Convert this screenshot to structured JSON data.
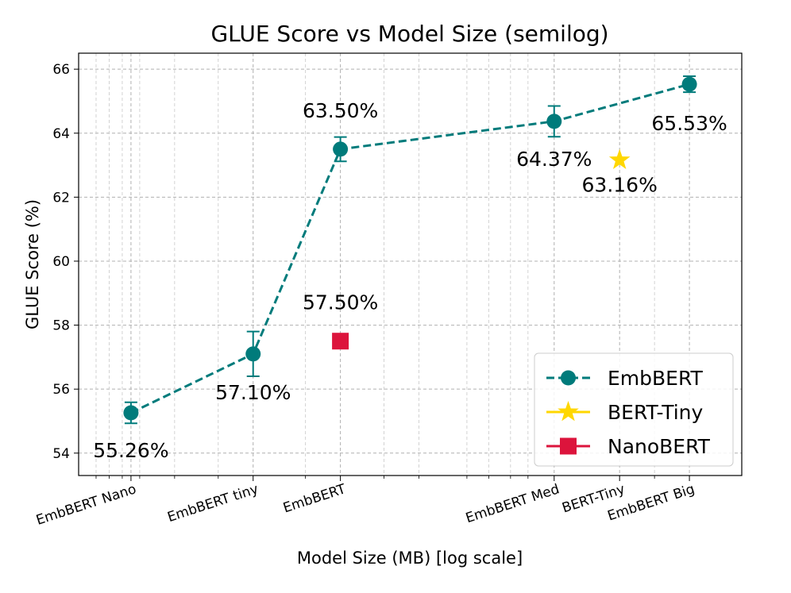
{
  "chart_data": {
    "type": "scatter",
    "title": "GLUE Score vs Model Size (semilog)",
    "xlabel": "Model Size (MB) [log scale]",
    "ylabel": "GLUE Score (%)",
    "x_scale": "log",
    "xlim_log10": [
      -0.92,
      0.6
    ],
    "ylim": [
      53.3,
      66.5
    ],
    "yticks": [
      54,
      56,
      58,
      60,
      62,
      64,
      66
    ],
    "grid": true,
    "legend_position": "bottom-right",
    "xticks": [
      {
        "label": "EmbBERT Nano",
        "log10": -0.8
      },
      {
        "label": "EmbBERT tiny",
        "log10": -0.52
      },
      {
        "label": "EmbBERT",
        "log10": -0.32
      },
      {
        "label": "EmbBERT Med",
        "log10": 0.17
      },
      {
        "label": "BERT-Tiny",
        "log10": 0.32
      },
      {
        "label": "EmbBERT Big",
        "log10": 0.48
      }
    ],
    "minor_xticks_log10": [
      -0.88,
      -0.85,
      -0.82,
      -0.78,
      -0.7,
      -0.6,
      -0.4,
      -0.22,
      -0.14,
      -0.03,
      0.02,
      0.07,
      0.11,
      0.4
    ],
    "series": [
      {
        "name": "EmbBERT",
        "marker": "circle",
        "line": "dashed",
        "color": "#007b7b",
        "points": [
          {
            "log10": -0.8,
            "y": 55.26,
            "err": 0.33,
            "label": "55.26%"
          },
          {
            "log10": -0.52,
            "y": 57.1,
            "err": 0.7,
            "label": "57.10%"
          },
          {
            "log10": -0.32,
            "y": 63.5,
            "err": 0.38,
            "label": "63.50%"
          },
          {
            "log10": 0.17,
            "y": 64.37,
            "err": 0.48,
            "label": "64.37%"
          },
          {
            "log10": 0.48,
            "y": 65.53,
            "err": 0.25,
            "label": "65.53%"
          }
        ]
      },
      {
        "name": "BERT-Tiny",
        "marker": "star",
        "color": "#ffd700",
        "points": [
          {
            "log10": 0.32,
            "y": 63.16,
            "label": "63.16%"
          }
        ]
      },
      {
        "name": "NanoBERT",
        "marker": "square",
        "color": "#dc143c",
        "points": [
          {
            "log10": -0.32,
            "y": 57.5,
            "label": "57.50%"
          }
        ]
      }
    ]
  }
}
